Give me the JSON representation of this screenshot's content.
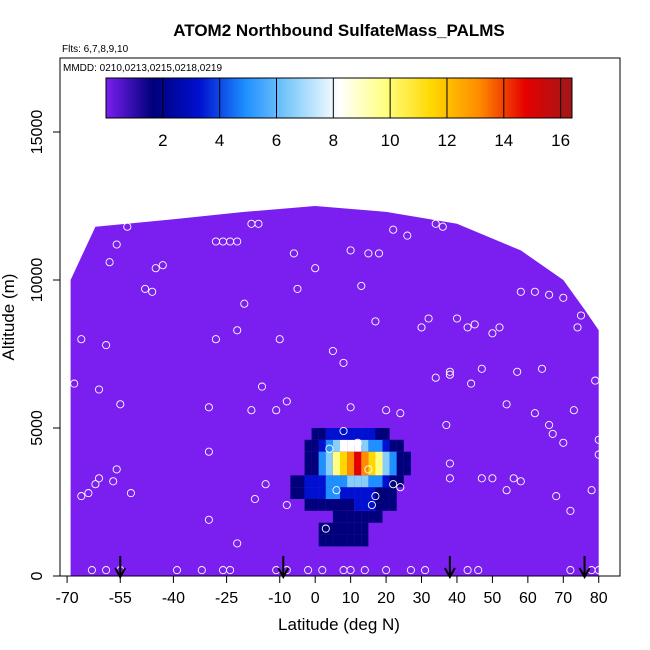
{
  "chart_data": {
    "type": "heatmap",
    "title": "ATOM2 Northbound SulfateMass_PALMS",
    "subtitle_flights": "Flts: 6,7,8,9,10",
    "subtitle_dates": "MMDD: 0210,0213,0215,0218,0219",
    "xlabel": "Latitude (deg N)",
    "ylabel": "Altitude (m)",
    "xlim": [
      -72,
      86
    ],
    "ylim": [
      0,
      17500
    ],
    "x_ticks": [
      -70,
      -55,
      -40,
      -25,
      -10,
      0,
      10,
      20,
      30,
      40,
      50,
      60,
      70,
      80
    ],
    "x_tick_labels": [
      "-70",
      "-55",
      "-40",
      "-25",
      "-10",
      "0",
      "10",
      "20",
      "30",
      "40",
      "50",
      "60",
      "70",
      "80"
    ],
    "y_ticks": [
      0,
      5000,
      10000,
      15000
    ],
    "y_tick_labels": [
      "0",
      "5000",
      "10000",
      "15000"
    ],
    "colorbar": {
      "range": [
        0,
        16.4
      ],
      "ticks": [
        2,
        4,
        6,
        8,
        10,
        12,
        14,
        16
      ],
      "tick_labels": [
        "2",
        "4",
        "6",
        "8",
        "10",
        "12",
        "14",
        "16"
      ],
      "colors": [
        "#7a1ff0",
        "#00007a",
        "#0010d0",
        "#1e90ff",
        "#87cefa",
        "#ffffff",
        "#ffff80",
        "#ffd700",
        "#ff8c00",
        "#e60000",
        "#a01818"
      ]
    },
    "background_value": 0.3,
    "hotspots": [
      {
        "lat": 12,
        "alt": 3800,
        "value": 16
      },
      {
        "lat": 10,
        "alt": 4200,
        "value": 9
      },
      {
        "lat": 5,
        "alt": 3000,
        "value": 5
      },
      {
        "lat": 14,
        "alt": 2600,
        "value": 3
      },
      {
        "lat": 8,
        "alt": 1500,
        "value": 1.8
      }
    ],
    "profile_arrows_lat": [
      -55,
      -9,
      38,
      76
    ],
    "sample_points": [
      [
        -58,
        10600
      ],
      [
        -56,
        11200
      ],
      [
        -53,
        11800
      ],
      [
        -70,
        10100
      ],
      [
        -66,
        8000
      ],
      [
        -68,
        6500
      ],
      [
        -59,
        7800
      ],
      [
        -61,
        6300
      ],
      [
        -55,
        5800
      ],
      [
        -61,
        3300
      ],
      [
        -56,
        3600
      ],
      [
        -52,
        2800
      ],
      [
        -57,
        3200
      ],
      [
        -62,
        3100
      ],
      [
        -64,
        2800
      ],
      [
        -66,
        2700
      ],
      [
        -63,
        200
      ],
      [
        -59,
        200
      ],
      [
        -55,
        200
      ],
      [
        -45,
        10400
      ],
      [
        -43,
        10500
      ],
      [
        -48,
        9700
      ],
      [
        -46,
        9600
      ],
      [
        -28,
        11300
      ],
      [
        -26,
        11300
      ],
      [
        -24,
        11300
      ],
      [
        -22,
        11300
      ],
      [
        -18,
        11900
      ],
      [
        -16,
        11900
      ],
      [
        -20,
        9200
      ],
      [
        -28,
        8000
      ],
      [
        -22,
        8300
      ],
      [
        -30,
        5700
      ],
      [
        -18,
        5600
      ],
      [
        -15,
        6400
      ],
      [
        -30,
        4200
      ],
      [
        -30,
        1900
      ],
      [
        -17,
        2600
      ],
      [
        -14,
        3100
      ],
      [
        -11,
        5600
      ],
      [
        -8,
        5900
      ],
      [
        -8,
        2400
      ],
      [
        -6,
        10900
      ],
      [
        -10,
        8000
      ],
      [
        -5,
        9700
      ],
      [
        0,
        10400
      ],
      [
        5,
        7600
      ],
      [
        8,
        7200
      ],
      [
        10,
        11000
      ],
      [
        15,
        10900
      ],
      [
        18,
        10900
      ],
      [
        13,
        9800
      ],
      [
        17,
        8600
      ],
      [
        10,
        5700
      ],
      [
        8,
        4900
      ],
      [
        12,
        4500
      ],
      [
        15,
        3600
      ],
      [
        17,
        2700
      ],
      [
        6,
        2900
      ],
      [
        3,
        1600
      ],
      [
        4,
        4300
      ],
      [
        16,
        2400
      ],
      [
        22,
        3100
      ],
      [
        20,
        5600
      ],
      [
        24,
        5500
      ],
      [
        24,
        3000
      ],
      [
        22,
        11700
      ],
      [
        26,
        11500
      ],
      [
        32,
        8700
      ],
      [
        30,
        8400
      ],
      [
        34,
        6700
      ],
      [
        37,
        5100
      ],
      [
        38,
        6900
      ],
      [
        38,
        6800
      ],
      [
        43,
        8400
      ],
      [
        45,
        8500
      ],
      [
        50,
        8200
      ],
      [
        47,
        7000
      ],
      [
        54,
        5800
      ],
      [
        56,
        3300
      ],
      [
        58,
        3200
      ],
      [
        54,
        2900
      ],
      [
        52,
        8400
      ],
      [
        57,
        6900
      ],
      [
        62,
        5500
      ],
      [
        66,
        5100
      ],
      [
        64,
        7000
      ],
      [
        67,
        4800
      ],
      [
        68,
        2700
      ],
      [
        70,
        4500
      ],
      [
        73,
        5600
      ],
      [
        72,
        2200
      ],
      [
        74,
        8400
      ],
      [
        79,
        6600
      ],
      [
        80,
        4600
      ],
      [
        78,
        2900
      ],
      [
        58,
        9600
      ],
      [
        62,
        9600
      ],
      [
        66,
        9500
      ],
      [
        70,
        9400
      ],
      [
        75,
        8800
      ],
      [
        80,
        4100
      ],
      [
        34,
        11900
      ],
      [
        36,
        11800
      ],
      [
        40,
        8700
      ],
      [
        44,
        6500
      ],
      [
        38,
        3800
      ],
      [
        38,
        3300
      ],
      [
        47,
        3300
      ],
      [
        50,
        3300
      ],
      [
        -11,
        200
      ],
      [
        -8,
        200
      ],
      [
        -2,
        200
      ],
      [
        2,
        200
      ],
      [
        8,
        200
      ],
      [
        10,
        200
      ],
      [
        14,
        200
      ],
      [
        20,
        200
      ],
      [
        27,
        200
      ],
      [
        31,
        200
      ],
      [
        43,
        200
      ],
      [
        46,
        200
      ],
      [
        72,
        200
      ],
      [
        78,
        200
      ],
      [
        80,
        200
      ],
      [
        -39,
        200
      ],
      [
        -32,
        200
      ],
      [
        -26,
        200
      ],
      [
        -24,
        200
      ],
      [
        -22,
        1100
      ]
    ]
  }
}
